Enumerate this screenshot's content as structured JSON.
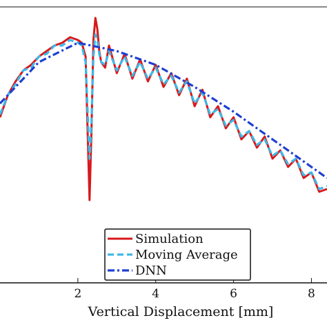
{
  "chart_data": {
    "type": "line",
    "xlabel": "Vertical Displacement [mm]",
    "ylabel": "",
    "title": "",
    "xlim": [
      0,
      8.4
    ],
    "xticks": [
      2,
      4,
      6,
      8
    ],
    "grid": false,
    "legend_position": "bottom-center",
    "series": [
      {
        "name": "Simulation",
        "color": "#d7191c",
        "style": "solid",
        "x": [
          0,
          0.2,
          0.4,
          0.6,
          0.8,
          1.0,
          1.2,
          1.4,
          1.6,
          1.8,
          2.0,
          2.1,
          2.2,
          2.25,
          2.3,
          2.35,
          2.4,
          2.45,
          2.5,
          2.55,
          2.6,
          2.7,
          2.8,
          3.0,
          3.2,
          3.4,
          3.6,
          3.8,
          4.0,
          4.2,
          4.4,
          4.6,
          4.8,
          5.0,
          5.2,
          5.4,
          5.6,
          5.8,
          6.0,
          6.2,
          6.4,
          6.6,
          6.8,
          7.0,
          7.2,
          7.4,
          7.6,
          7.8,
          8.0,
          8.2,
          8.4
        ],
        "y": [
          0.6,
          0.68,
          0.73,
          0.77,
          0.79,
          0.82,
          0.84,
          0.86,
          0.87,
          0.89,
          0.88,
          0.87,
          0.82,
          0.55,
          0.3,
          0.55,
          0.88,
          0.96,
          0.92,
          0.84,
          0.8,
          0.78,
          0.86,
          0.76,
          0.83,
          0.74,
          0.81,
          0.73,
          0.79,
          0.71,
          0.76,
          0.68,
          0.74,
          0.64,
          0.7,
          0.6,
          0.64,
          0.56,
          0.6,
          0.52,
          0.55,
          0.49,
          0.53,
          0.45,
          0.48,
          0.42,
          0.45,
          0.38,
          0.4,
          0.33,
          0.34
        ]
      },
      {
        "name": "Moving Average",
        "color": "#3fb8e6",
        "style": "dashed",
        "x": [
          0,
          0.2,
          0.4,
          0.6,
          0.8,
          1.0,
          1.2,
          1.4,
          1.6,
          1.8,
          2.0,
          2.1,
          2.2,
          2.25,
          2.3,
          2.35,
          2.4,
          2.45,
          2.5,
          2.55,
          2.6,
          2.7,
          2.8,
          3.0,
          3.2,
          3.4,
          3.6,
          3.8,
          4.0,
          4.2,
          4.4,
          4.6,
          4.8,
          5.0,
          5.2,
          5.4,
          5.6,
          5.8,
          6.0,
          6.2,
          6.4,
          6.6,
          6.8,
          7.0,
          7.2,
          7.4,
          7.6,
          7.8,
          8.0,
          8.2,
          8.4
        ],
        "y": [
          0.61,
          0.68,
          0.72,
          0.77,
          0.78,
          0.82,
          0.83,
          0.86,
          0.86,
          0.88,
          0.87,
          0.86,
          0.8,
          0.62,
          0.45,
          0.58,
          0.82,
          0.9,
          0.88,
          0.83,
          0.8,
          0.79,
          0.84,
          0.77,
          0.82,
          0.75,
          0.8,
          0.74,
          0.78,
          0.72,
          0.75,
          0.69,
          0.73,
          0.65,
          0.69,
          0.61,
          0.63,
          0.57,
          0.59,
          0.53,
          0.55,
          0.5,
          0.52,
          0.46,
          0.48,
          0.43,
          0.45,
          0.39,
          0.4,
          0.34,
          0.35
        ]
      },
      {
        "name": "DNN",
        "color": "#1f3fd0",
        "style": "dashdot",
        "x": [
          0,
          1.0,
          2.0,
          3.0,
          4.0,
          5.0,
          6.0,
          7.0,
          8.0,
          8.4
        ],
        "y": [
          0.65,
          0.8,
          0.87,
          0.84,
          0.79,
          0.71,
          0.62,
          0.52,
          0.42,
          0.38
        ]
      }
    ]
  }
}
